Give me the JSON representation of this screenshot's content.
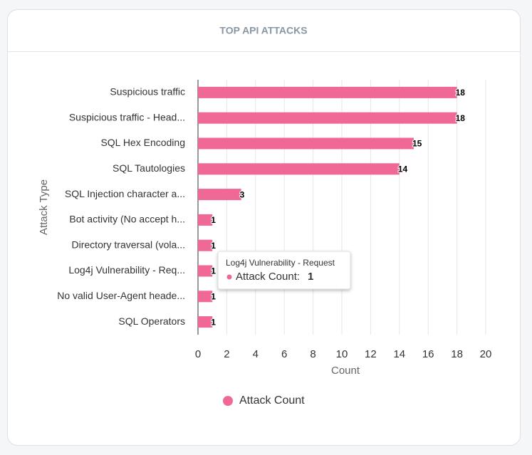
{
  "chart_data": {
    "type": "hbar",
    "title": "TOP API ATTACKS",
    "categories": [
      "Suspicious traffic",
      "Suspicious traffic - Head...",
      "SQL Hex Encoding",
      "SQL Tautologies",
      "SQL Injection character a...",
      "Bot activity (No accept h...",
      "Directory traversal (vola...",
      "Log4j Vulnerability - Req...",
      "No valid User-Agent heade...",
      "SQL Operators"
    ],
    "series": [
      {
        "name": "Attack Count",
        "color": "#f06895",
        "values": [
          18,
          18,
          15,
          14,
          3,
          1,
          1,
          1,
          1,
          1
        ]
      }
    ],
    "x_label": "Count",
    "y_label": "Attack Type",
    "xlim": [
      0,
      20
    ],
    "xticks": [
      0,
      2,
      4,
      6,
      8,
      10,
      12,
      14,
      16,
      18,
      20
    ],
    "grid": true,
    "legend": "bottom",
    "tooltip": {
      "title": "Log4j Vulnerability - Request",
      "label": "Attack Count:"
    }
  }
}
